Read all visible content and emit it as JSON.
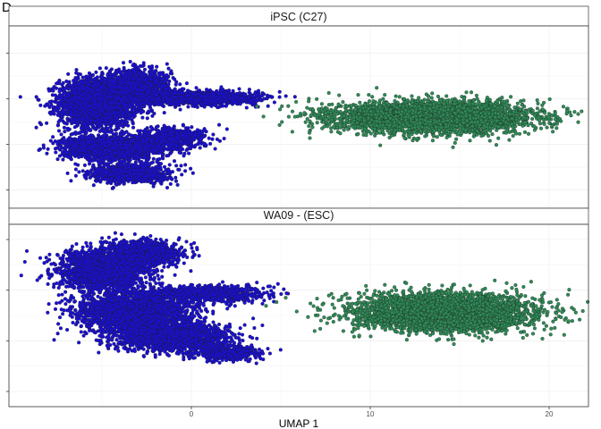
{
  "panel_label": "D",
  "chart_data": {
    "type": "scatter",
    "xlabel": "UMAP 1",
    "ylabel": "",
    "xlim": [
      -10.2,
      22.2
    ],
    "xticks": [
      0,
      10,
      20
    ],
    "grid": true,
    "legend": "none",
    "colors": {
      "blue": "#1a0fd8",
      "green": "#2e8b57",
      "outline": "#1e1e1e"
    },
    "facets": [
      {
        "title": "iPSC (C27)",
        "ylim": [
          -8,
          12
        ],
        "yticks": [
          -6,
          -1,
          4,
          9
        ],
        "clusters": [
          {
            "color": "blue",
            "cx": -5.2,
            "cy": 3.6,
            "rx": 2.4,
            "ry": 2.9,
            "n": 2600
          },
          {
            "color": "blue",
            "cx": -3.0,
            "cy": 5.4,
            "rx": 2.0,
            "ry": 1.9,
            "n": 1200
          },
          {
            "color": "blue",
            "cx": 0.5,
            "cy": 4.1,
            "rx": 3.6,
            "ry": 0.8,
            "n": 1400
          },
          {
            "color": "blue",
            "cx": -4.5,
            "cy": -1.4,
            "rx": 3.0,
            "ry": 1.5,
            "n": 1500
          },
          {
            "color": "blue",
            "cx": -3.4,
            "cy": -4.2,
            "rx": 2.4,
            "ry": 1.1,
            "n": 900
          },
          {
            "color": "blue",
            "cx": -1.2,
            "cy": -0.4,
            "rx": 2.2,
            "ry": 1.4,
            "n": 600
          },
          {
            "color": "green",
            "cx": 13.5,
            "cy": 2.0,
            "rx": 6.0,
            "ry": 1.85,
            "n": 3800
          }
        ]
      },
      {
        "title": "WA09 - (ESC)",
        "ylim": [
          -6.5,
          11.5
        ],
        "yticks": [
          -5,
          0,
          5,
          10
        ],
        "clusters": [
          {
            "color": "blue",
            "cx": -5.0,
            "cy": 6.8,
            "rx": 2.7,
            "ry": 2.2,
            "n": 1800
          },
          {
            "color": "blue",
            "cx": -2.8,
            "cy": 8.6,
            "rx": 2.5,
            "ry": 1.4,
            "n": 1000
          },
          {
            "color": "blue",
            "cx": -3.2,
            "cy": 2.8,
            "rx": 3.5,
            "ry": 2.1,
            "n": 2200
          },
          {
            "color": "blue",
            "cx": 0.8,
            "cy": 4.6,
            "rx": 3.6,
            "ry": 0.9,
            "n": 900
          },
          {
            "color": "blue",
            "cx": -1.2,
            "cy": 0.3,
            "rx": 3.5,
            "ry": 1.5,
            "n": 1600
          },
          {
            "color": "blue",
            "cx": 2.0,
            "cy": -1.2,
            "rx": 1.8,
            "ry": 0.8,
            "n": 500
          },
          {
            "color": "green",
            "cx": 14.2,
            "cy": 2.8,
            "rx": 5.4,
            "ry": 2.0,
            "n": 3800
          }
        ]
      }
    ]
  }
}
